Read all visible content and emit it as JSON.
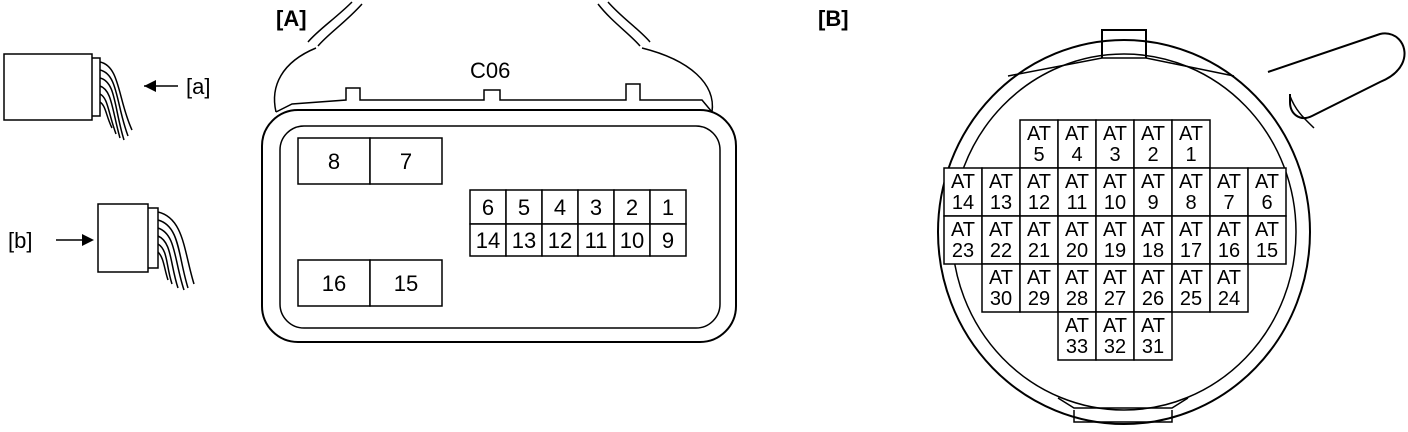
{
  "labels": {
    "view_a_marker": "[a]",
    "view_b_marker": "[b]",
    "panel_a_header": "[A]",
    "panel_b_header": "[B]",
    "connector_id": "C06"
  },
  "connector_a": {
    "large_top": [
      "8",
      "7"
    ],
    "large_bottom": [
      "16",
      "15"
    ],
    "small_row1": [
      "6",
      "5",
      "4",
      "3",
      "2",
      "1"
    ],
    "small_row2": [
      "14",
      "13",
      "12",
      "11",
      "10",
      "9"
    ]
  },
  "connector_b": {
    "prefix": "AT",
    "rows": [
      [
        "5",
        "4",
        "3",
        "2",
        "1"
      ],
      [
        "14",
        "13",
        "12",
        "11",
        "10",
        "9",
        "8",
        "7",
        "6"
      ],
      [
        "23",
        "22",
        "21",
        "20",
        "19",
        "18",
        "17",
        "16",
        "15"
      ],
      [
        "30",
        "29",
        "28",
        "27",
        "26",
        "25",
        "24"
      ],
      [
        "33",
        "32",
        "31"
      ]
    ]
  }
}
